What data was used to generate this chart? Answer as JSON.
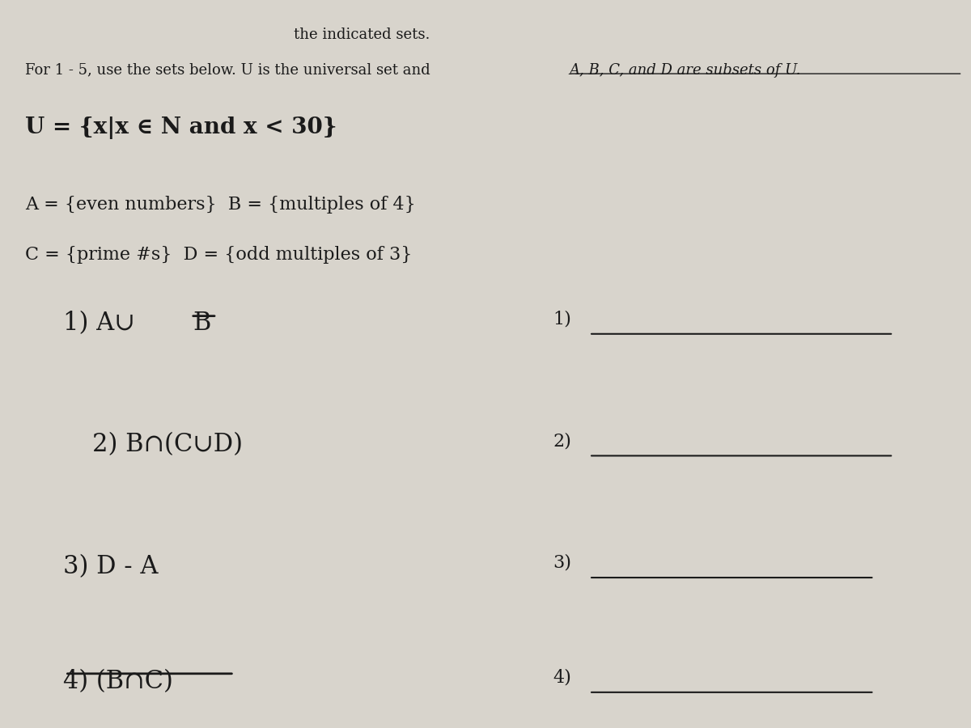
{
  "bg_color": "#d8d4cc",
  "text_color": "#1a1a1a",
  "title_partial": "the indicated sets.",
  "intro_main": "For 1 - 5, use the sets below. U is the universal set and ",
  "intro_underline": "A, B, C, and D are subsets of U.",
  "u_def": "U = {x|x ∈ N and x < 30}",
  "set_line1": "A = {even numbers}  B = {multiples of 4}",
  "set_line2": "C = {prime #s}  D = {odd multiples of 3}",
  "figsize": [
    12,
    9
  ]
}
